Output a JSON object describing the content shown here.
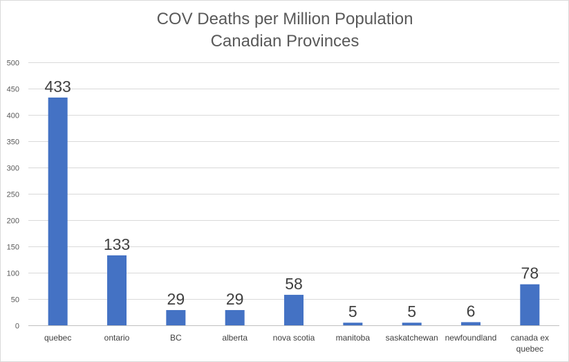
{
  "chart_data": {
    "type": "bar",
    "title": "COV Deaths per Million Population",
    "subtitle": "Canadian Provinces",
    "xlabel": "",
    "ylabel": "",
    "ylim": [
      0,
      500
    ],
    "yticks": [
      "0",
      "50",
      "100",
      "150",
      "200",
      "250",
      "300",
      "350",
      "400",
      "450",
      "500"
    ],
    "grid": true,
    "legend": "none",
    "bar_color": "#4472C4",
    "categories": [
      "quebec",
      "ontario",
      "BC",
      "alberta",
      "nova scotia",
      "manitoba",
      "saskatchewan",
      "newfoundland",
      "canada ex quebec"
    ],
    "values": [
      433,
      133,
      29,
      29,
      58,
      5,
      5,
      6,
      78
    ],
    "data_labels": [
      "433",
      "133",
      "29",
      "29",
      "58",
      "5",
      "5",
      "6",
      "78"
    ]
  }
}
